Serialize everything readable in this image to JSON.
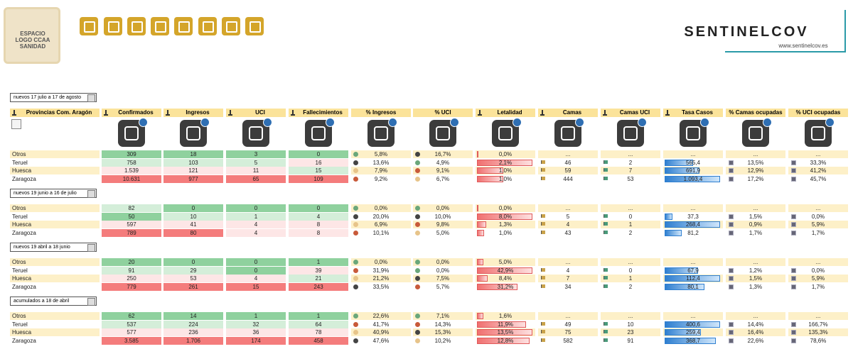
{
  "header": {
    "logo_text": "ESPACIO LOGO CCAA SANIDAD",
    "brand": "SENTINELCOV",
    "website": "www.sentinelcov.es"
  },
  "table": {
    "columns": [
      "Provincias Com. Aragón",
      "Confirmados",
      "Ingresos",
      "UCI",
      "Fallecimientos",
      "% Ingresos",
      "% UCI",
      "Letalidad",
      "Camas",
      "Camas UCI",
      "Tasa Casos",
      "% Camas ocupadas",
      "% UCI ocupadas"
    ],
    "blocks": [
      {
        "period": "nuevos 17 julio a 17 de agosto",
        "rows": [
          [
            "Otros",
            "309",
            "18",
            "3",
            "0",
            "5,8%",
            "16,7%",
            "0,0%",
            "...",
            "...",
            "...",
            "...",
            "..."
          ],
          [
            "Teruel",
            "758",
            "103",
            "5",
            "16",
            "13,6%",
            "4,9%",
            "2,1%",
            "46",
            "2",
            "565,4",
            "13,5%",
            "33,3%"
          ],
          [
            "Huesca",
            "1.539",
            "121",
            "11",
            "15",
            "7,9%",
            "9,1%",
            "1,0%",
            "59",
            "7",
            "691,9",
            "12,9%",
            "41,2%"
          ],
          [
            "Zaragoza",
            "10.631",
            "977",
            "65",
            "109",
            "9,2%",
            "6,7%",
            "1,0%",
            "444",
            "53",
            "1.093,4",
            "17,2%",
            "45,7%"
          ]
        ]
      },
      {
        "period": "nuevos 19 junio a 16 de julio",
        "rows": [
          [
            "Otros",
            "82",
            "0",
            "0",
            "0",
            "0,0%",
            "0,0%",
            "0,0%",
            "...",
            "...",
            "...",
            "...",
            "..."
          ],
          [
            "Teruel",
            "50",
            "10",
            "1",
            "4",
            "20,0%",
            "10,0%",
            "8,0%",
            "5",
            "0",
            "37,3",
            "1,5%",
            "0,0%"
          ],
          [
            "Huesca",
            "597",
            "41",
            "4",
            "8",
            "6,9%",
            "9,8%",
            "1,3%",
            "4",
            "1",
            "268,4",
            "0,9%",
            "5,9%"
          ],
          [
            "Zaragoza",
            "789",
            "80",
            "4",
            "8",
            "10,1%",
            "5,0%",
            "1,0%",
            "43",
            "2",
            "81,2",
            "1,7%",
            "1,7%"
          ]
        ]
      },
      {
        "period": "nuevos 19 abril a 18 junio",
        "rows": [
          [
            "Otros",
            "20",
            "0",
            "0",
            "1",
            "0,0%",
            "0,0%",
            "5,0%",
            "...",
            "...",
            "...",
            "...",
            "..."
          ],
          [
            "Teruel",
            "91",
            "29",
            "0",
            "39",
            "31,9%",
            "0,0%",
            "42,9%",
            "4",
            "0",
            "67,9",
            "1,2%",
            "0,0%"
          ],
          [
            "Huesca",
            "250",
            "53",
            "4",
            "21",
            "21,2%",
            "7,5%",
            "8,4%",
            "7",
            "1",
            "112,4",
            "1,5%",
            "5,9%"
          ],
          [
            "Zaragoza",
            "779",
            "261",
            "15",
            "243",
            "33,5%",
            "5,7%",
            "31,2%",
            "34",
            "2",
            "80,1",
            "1,3%",
            "1,7%"
          ]
        ]
      },
      {
        "period": "acumulados a 18 de abril",
        "rows": [
          [
            "Otros",
            "62",
            "14",
            "1",
            "1",
            "22,6%",
            "7,1%",
            "1,6%",
            "...",
            "...",
            "...",
            "...",
            "..."
          ],
          [
            "Teruel",
            "537",
            "224",
            "32",
            "64",
            "41,7%",
            "14,3%",
            "11,9%",
            "49",
            "10",
            "400,6",
            "14,4%",
            "166,7%"
          ],
          [
            "Huesca",
            "577",
            "236",
            "36",
            "78",
            "40,9%",
            "15,3%",
            "13,5%",
            "75",
            "23",
            "259,4",
            "16,4%",
            "135,3%"
          ],
          [
            "Zaragoza",
            "3.585",
            "1.706",
            "174",
            "458",
            "47,6%",
            "10,2%",
            "12,8%",
            "582",
            "91",
            "368,7",
            "22,6%",
            "78,6%"
          ]
        ]
      }
    ]
  }
}
